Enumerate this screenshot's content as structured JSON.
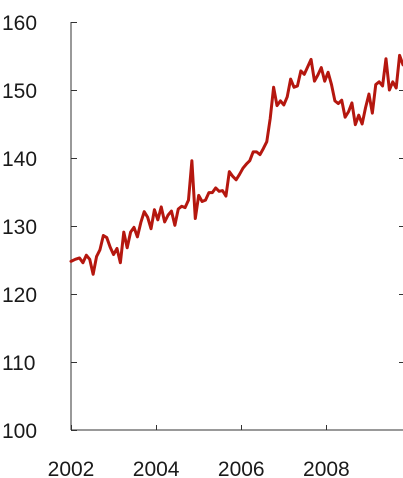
{
  "chart_data": {
    "type": "line",
    "title": "",
    "xlabel": "",
    "ylabel": "",
    "xlim": [
      2002.0,
      2009.8
    ],
    "ylim": [
      100,
      160
    ],
    "x_ticks": [
      "2002",
      "2004",
      "2006",
      "2008"
    ],
    "y_ticks": [
      "100",
      "110",
      "120",
      "130",
      "140",
      "150",
      "160"
    ],
    "grid": false,
    "legend": "none",
    "series": [
      {
        "color": "#b5170f",
        "x": [
          2002.0,
          2002.1,
          2002.2,
          2002.28,
          2002.36,
          2002.44,
          2002.52,
          2002.6,
          2002.68,
          2002.76,
          2002.84,
          2002.92,
          2003.0,
          2003.08,
          2003.16,
          2003.24,
          2003.32,
          2003.4,
          2003.48,
          2003.56,
          2003.64,
          2003.72,
          2003.8,
          2003.88,
          2003.96,
          2004.04,
          2004.12,
          2004.2,
          2004.28,
          2004.36,
          2004.44,
          2004.52,
          2004.6,
          2004.68,
          2004.76,
          2004.84,
          2004.92,
          2005.0,
          2005.08,
          2005.16,
          2005.24,
          2005.32,
          2005.4,
          2005.48,
          2005.56,
          2005.64,
          2005.72,
          2005.8,
          2005.88,
          2005.96,
          2006.04,
          2006.12,
          2006.2,
          2006.28,
          2006.36,
          2006.44,
          2006.52,
          2006.6,
          2006.68,
          2006.76,
          2006.84,
          2006.92,
          2007.0,
          2007.08,
          2007.16,
          2007.24,
          2007.32,
          2007.4,
          2007.48,
          2007.56,
          2007.64,
          2007.72,
          2007.8,
          2007.88,
          2007.96,
          2008.04,
          2008.12,
          2008.2,
          2008.28,
          2008.36,
          2008.44,
          2008.52,
          2008.6,
          2008.68,
          2008.76,
          2008.84,
          2008.92,
          2009.0,
          2009.08,
          2009.16,
          2009.24,
          2009.32,
          2009.4,
          2009.48,
          2009.56,
          2009.64,
          2009.72,
          2009.8
        ],
        "values": [
          124.8,
          125.1,
          125.3,
          124.6,
          125.7,
          125.1,
          122.9,
          125.5,
          126.5,
          128.6,
          128.3,
          126.9,
          125.8,
          126.7,
          124.6,
          129.1,
          126.8,
          129.1,
          129.8,
          128.4,
          130.5,
          132.1,
          131.3,
          129.6,
          132.4,
          130.9,
          132.8,
          130.6,
          131.6,
          132.2,
          130.1,
          132.5,
          132.9,
          132.7,
          133.8,
          139.6,
          131.1,
          134.5,
          133.6,
          133.8,
          134.9,
          134.9,
          135.6,
          135.1,
          135.2,
          134.4,
          138.0,
          137.3,
          136.8,
          137.6,
          138.5,
          139.1,
          139.6,
          140.9,
          140.9,
          140.5,
          141.4,
          142.4,
          145.8,
          150.4,
          147.7,
          148.4,
          147.8,
          149.0,
          151.6,
          150.4,
          150.6,
          152.8,
          152.3,
          153.4,
          154.5,
          151.3,
          152.2,
          153.3,
          151.3,
          152.6,
          150.8,
          148.4,
          148.0,
          148.5,
          146.0,
          146.8,
          148.1,
          144.9,
          146.3,
          145.0,
          147.4,
          149.4,
          146.6,
          150.8,
          151.2,
          150.6,
          154.6,
          150.0,
          151.2,
          150.3,
          155.1,
          153.7
        ]
      }
    ]
  }
}
